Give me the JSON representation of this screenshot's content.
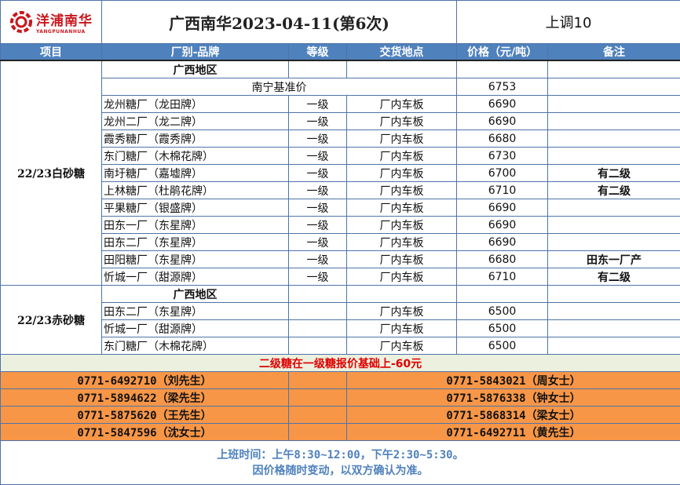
{
  "header": {
    "logo_cn": "洋浦南华",
    "logo_en": "YANGPUNANHUA",
    "title": "广西南华2023-04-11(第6次)",
    "adjustment": "上调10"
  },
  "columns": [
    "项目",
    "厂别-品牌",
    "等级",
    "交货地点",
    "价格（元/吨）",
    "备注"
  ],
  "sections": [
    {
      "category": "22/23白砂糖",
      "region": "广西地区",
      "benchmark": {
        "label": "南宁基准价",
        "price": "6753"
      },
      "rows": [
        {
          "brand": "龙州糖厂（龙田牌）",
          "grade": "一级",
          "delivery": "厂内车板",
          "price": "6690",
          "remark": ""
        },
        {
          "brand": "龙州二厂（龙二牌）",
          "grade": "一级",
          "delivery": "厂内车板",
          "price": "6690",
          "remark": ""
        },
        {
          "brand": "霞秀糖厂（霞秀牌）",
          "grade": "一级",
          "delivery": "厂内车板",
          "price": "6680",
          "remark": ""
        },
        {
          "brand": "东门糖厂（木棉花牌）",
          "grade": "一级",
          "delivery": "厂内车板",
          "price": "6730",
          "remark": ""
        },
        {
          "brand": "南圩糖厂（嘉墟牌）",
          "grade": "一级",
          "delivery": "厂内车板",
          "price": "6700",
          "remark": "有二级"
        },
        {
          "brand": "上林糖厂（杜鹃花牌）",
          "grade": "一级",
          "delivery": "厂内车板",
          "price": "6710",
          "remark": "有二级"
        },
        {
          "brand": "平果糖厂（银盛牌）",
          "grade": "一级",
          "delivery": "厂内车板",
          "price": "6690",
          "remark": ""
        },
        {
          "brand": "田东一厂（东星牌）",
          "grade": "一级",
          "delivery": "厂内车板",
          "price": "6690",
          "remark": ""
        },
        {
          "brand": "田东二厂（东星牌）",
          "grade": "一级",
          "delivery": "厂内车板",
          "price": "6690",
          "remark": ""
        },
        {
          "brand": "田阳糖厂（东星牌）",
          "grade": "一级",
          "delivery": "厂内车板",
          "price": "6680",
          "remark": "田东一厂产"
        },
        {
          "brand": "忻城一厂（甜源牌）",
          "grade": "一级",
          "delivery": "厂内车板",
          "price": "6710",
          "remark": "有二级"
        }
      ]
    },
    {
      "category": "22/23赤砂糖",
      "region": "广西地区",
      "rows": [
        {
          "brand": "田东二厂（东星牌）",
          "grade": "",
          "delivery": "厂内车板",
          "price": "6500",
          "remark": ""
        },
        {
          "brand": "忻城一厂（甜源牌）",
          "grade": "",
          "delivery": "厂内车板",
          "price": "6500",
          "remark": ""
        },
        {
          "brand": "东门糖厂（木棉花牌）",
          "grade": "",
          "delivery": "厂内车板",
          "price": "6500",
          "remark": ""
        }
      ]
    }
  ],
  "note": "二级糖在一级糖报价基础上-60元",
  "contacts": [
    [
      "0771-6492710（刘先生）",
      "0771-5843021（周女士）"
    ],
    [
      "0771-5894622（梁先生）",
      "0771-5876338（钟女士）"
    ],
    [
      "0771-5875620（王先生）",
      "0771-5868314（梁女士）"
    ],
    [
      "0771-5847596（沈女士）",
      "0771-6492711（黄先生）"
    ]
  ],
  "footer": {
    "hours": "上班时间：上午8:30~12:00，下午2:30~5:30。",
    "disclaimer": "因价格随时变动，以双方确认为准。"
  },
  "colors": {
    "header_blue": "#4f81bd",
    "orange": "#f79646",
    "note_red": "#e00000",
    "logo_red": "#c8161d"
  }
}
